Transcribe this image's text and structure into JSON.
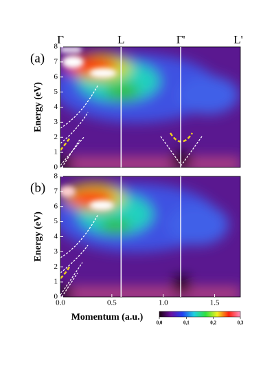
{
  "chart_data": [
    {
      "type": "heatmap",
      "panel_label": "(a)",
      "ylabel": "Energy (eV)",
      "ylim": [
        0,
        8
      ],
      "yticks": [
        0,
        1,
        2,
        3,
        4,
        5,
        6,
        7,
        8
      ],
      "xlim": [
        0,
        1.75
      ],
      "symmetry_points": [
        {
          "value": 0,
          "label": "Γ"
        },
        {
          "value": 0.59,
          "label": "L"
        },
        {
          "value": 1.17,
          "label": "Γ'"
        },
        {
          "value": 1.73,
          "label": "L'"
        }
      ]
    },
    {
      "type": "heatmap",
      "panel_label": "(b)",
      "ylabel": "Energy (eV)",
      "xlabel": "Momentum (a.u.)",
      "ylim": [
        0,
        8
      ],
      "yticks": [
        0,
        1,
        2,
        3,
        4,
        5,
        6,
        7,
        8
      ],
      "xlim": [
        0,
        1.75
      ],
      "xticks": [
        {
          "value": 0,
          "label": "0.0"
        },
        {
          "value": 0.5,
          "label": "0.5"
        },
        {
          "value": 1,
          "label": "1.0"
        },
        {
          "value": 1.5,
          "label": "1.5"
        }
      ],
      "colorbar": {
        "lim": [
          0,
          0.3
        ],
        "ticks": [
          {
            "value": 0,
            "label": "0,0"
          },
          {
            "value": 0.1,
            "label": "0,1"
          },
          {
            "value": 0.2,
            "label": "0,2"
          },
          {
            "value": 0.3,
            "label": "0,3"
          }
        ],
        "colors": [
          "#1a0010",
          "#6a10a0",
          "#2040f0",
          "#20d0e0",
          "#30e040",
          "#f0f020",
          "#ff2010",
          "#ff90c0"
        ]
      }
    }
  ]
}
